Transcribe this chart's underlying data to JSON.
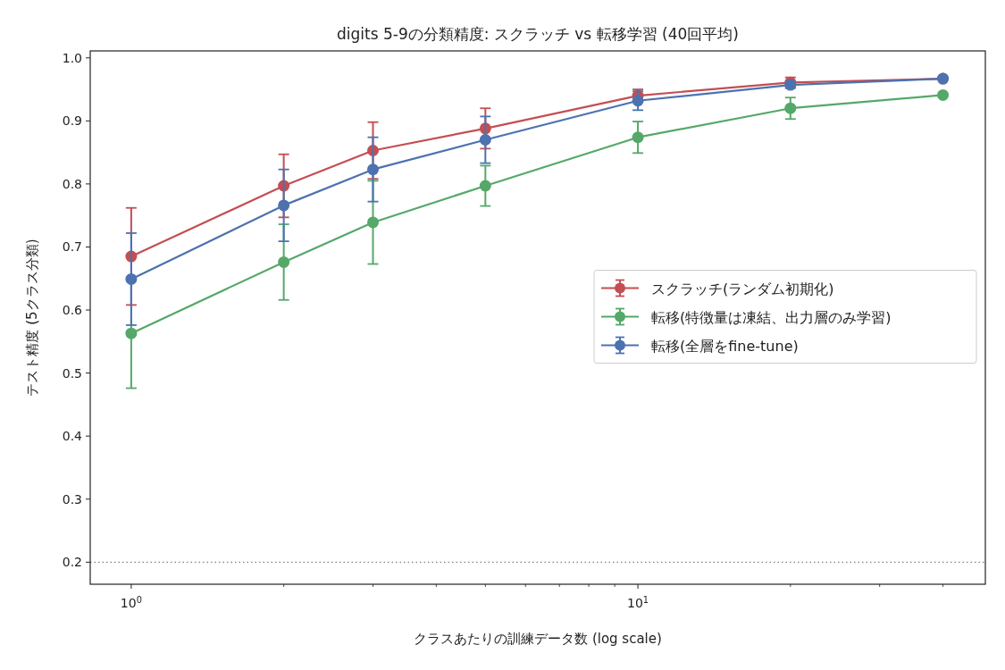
{
  "chart_data": {
    "type": "line",
    "title": "digits 5-9の分類精度: スクラッチ vs 転移学習 (40回平均)",
    "xlabel": "クラスあたりの訓練データ数 (log scale)",
    "ylabel": "テスト精度 (5クラス分類)",
    "x": [
      1,
      2,
      3,
      5,
      10,
      20,
      40
    ],
    "log": "x",
    "xlim": [
      0.83,
      48.5
    ],
    "ylim": [
      0.165,
      1.011
    ],
    "xticks": [
      {
        "value": 1,
        "label": "10$^{0}$"
      },
      {
        "value": 10,
        "label": "10$^{1}$"
      },
      {
        "value": 2,
        "label": null
      },
      {
        "value": 3,
        "label": null
      },
      {
        "value": 4,
        "label": null
      },
      {
        "value": 5,
        "label": null
      },
      {
        "value": 6,
        "label": null
      },
      {
        "value": 7,
        "label": null
      },
      {
        "value": 8,
        "label": null
      },
      {
        "value": 9,
        "label": null
      },
      {
        "value": 20,
        "label": null
      },
      {
        "value": 30,
        "label": null
      },
      {
        "value": 40,
        "label": null
      }
    ],
    "yticks": [
      0.2,
      0.3,
      0.4,
      0.5,
      0.6,
      0.7,
      0.8,
      0.9,
      {
        "value": 1,
        "label": "1.0"
      }
    ],
    "marker": "circle",
    "line_style": "solid",
    "legend": "right",
    "series": [
      {
        "name": "スクラッチ(ランダム初期化)",
        "color": "#c44e52",
        "values": [
          0.685,
          0.797,
          0.853,
          0.888,
          0.94,
          0.961,
          0.967
        ],
        "errors": [
          0.077,
          0.05,
          0.045,
          0.032,
          0.01,
          0.008,
          null
        ]
      },
      {
        "name": "転移(特徴量は凍結、出力層のみ学習)",
        "color": "#55a868",
        "values": [
          0.563,
          0.676,
          0.739,
          0.797,
          0.874,
          0.92,
          0.941
        ],
        "errors": [
          0.087,
          0.06,
          0.066,
          0.032,
          0.025,
          0.017,
          null
        ]
      },
      {
        "name": "転移(全層をfine-tune)",
        "color": "#4c72b0",
        "values": [
          0.649,
          0.766,
          0.823,
          0.87,
          0.932,
          0.957,
          0.967
        ],
        "errors": [
          0.073,
          0.057,
          0.051,
          0.037,
          0.015,
          0.005,
          null
        ]
      }
    ],
    "ref_lines": [
      {
        "axis": "y",
        "value": 0.2,
        "label": null,
        "color": "#808080",
        "line_style": "dotted"
      }
    ]
  }
}
